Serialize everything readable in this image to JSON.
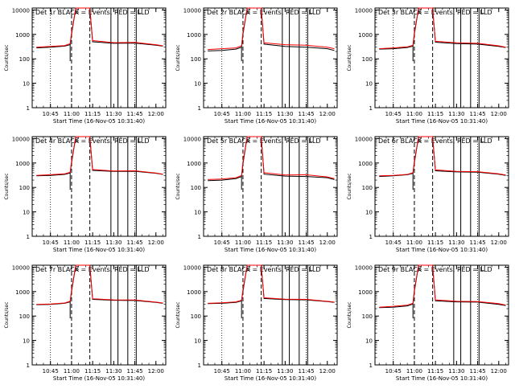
{
  "ylabel": "Counts/sec",
  "xlabel": "Start Time (16-Nov-05 10:31:40)",
  "x_tick_labels": [
    "10:45",
    "11:00",
    "11:15",
    "11:30",
    "11:45",
    "12:00"
  ],
  "y_tick_labels": [
    "1",
    "10",
    "100",
    "1000",
    "10000"
  ],
  "markers": {
    "S": "S",
    "L": "L"
  },
  "colors": {
    "events": "#000000",
    "lld": "#ff0000"
  },
  "chart_data": [
    {
      "type": "line",
      "title": "Det 1r BLACK = Events, RED = LLD",
      "ylim": [
        1,
        12000
      ],
      "xlim": [
        "10:32",
        "12:07"
      ],
      "x": [
        "10:35",
        "10:45",
        "10:55",
        "10:59",
        "11:00",
        "11:03",
        "11:08",
        "11:13",
        "11:15",
        "11:30",
        "11:45",
        "12:00",
        "12:05"
      ],
      "series": [
        {
          "name": "BLACK = Events",
          "values": [
            280,
            300,
            330,
            380,
            1000,
            12000,
            12000,
            12000,
            500,
            430,
            440,
            360,
            330
          ]
        },
        {
          "name": "RED = LLD",
          "values": [
            300,
            320,
            350,
            420,
            1200,
            12000,
            12000,
            12000,
            560,
            460,
            470,
            380,
            340
          ]
        }
      ],
      "grid": false
    },
    {
      "type": "line",
      "title": "Det 2r BLACK = Events, RED = LLD",
      "ylim": [
        1,
        12000
      ],
      "xlim": [
        "10:32",
        "12:07"
      ],
      "x": [
        "10:35",
        "10:45",
        "10:55",
        "10:59",
        "11:00",
        "11:03",
        "11:08",
        "11:13",
        "11:15",
        "11:30",
        "11:45",
        "12:00",
        "12:05"
      ],
      "series": [
        {
          "name": "BLACK = Events",
          "values": [
            210,
            220,
            250,
            300,
            1000,
            12000,
            12000,
            12000,
            400,
            320,
            300,
            260,
            220
          ]
        },
        {
          "name": "RED = LLD",
          "values": [
            240,
            260,
            280,
            340,
            1200,
            12000,
            12000,
            12000,
            450,
            380,
            360,
            300,
            260
          ]
        }
      ],
      "grid": false
    },
    {
      "type": "line",
      "title": "Det 3r BLACK = Events, RED = LLD",
      "ylim": [
        1,
        12000
      ],
      "xlim": [
        "10:32",
        "12:07"
      ],
      "x": [
        "10:35",
        "10:45",
        "10:55",
        "10:59",
        "11:00",
        "11:03",
        "11:08",
        "11:13",
        "11:15",
        "11:30",
        "11:45",
        "12:00",
        "12:05"
      ],
      "series": [
        {
          "name": "BLACK = Events",
          "values": [
            250,
            260,
            290,
            330,
            1000,
            12000,
            12000,
            12000,
            480,
            420,
            400,
            320,
            290
          ]
        },
        {
          "name": "RED = LLD",
          "values": [
            260,
            280,
            310,
            360,
            1200,
            12000,
            12000,
            12000,
            520,
            450,
            430,
            340,
            300
          ]
        }
      ],
      "grid": false
    },
    {
      "type": "line",
      "title": "Det 4r BLACK = Events, RED = LLD",
      "ylim": [
        1,
        12000
      ],
      "xlim": [
        "10:32",
        "12:07"
      ],
      "x": [
        "10:35",
        "10:45",
        "10:55",
        "10:59",
        "11:00",
        "11:03",
        "11:08",
        "11:13",
        "11:15",
        "11:30",
        "11:45",
        "12:00",
        "12:05"
      ],
      "series": [
        {
          "name": "BLACK = Events",
          "values": [
            300,
            310,
            340,
            390,
            1000,
            12000,
            12000,
            12000,
            500,
            450,
            460,
            380,
            340
          ]
        },
        {
          "name": "RED = LLD",
          "values": [
            310,
            330,
            360,
            420,
            1200,
            12000,
            12000,
            12000,
            540,
            470,
            480,
            390,
            350
          ]
        }
      ],
      "grid": false
    },
    {
      "type": "line",
      "title": "Det 5r BLACK = Events, RED = LLD",
      "ylim": [
        1,
        12000
      ],
      "xlim": [
        "10:32",
        "12:07"
      ],
      "x": [
        "10:35",
        "10:45",
        "10:55",
        "10:59",
        "11:00",
        "11:03",
        "11:08",
        "11:13",
        "11:15",
        "11:30",
        "11:45",
        "12:00",
        "12:05"
      ],
      "series": [
        {
          "name": "BLACK = Events",
          "values": [
            190,
            200,
            230,
            280,
            900,
            12000,
            12000,
            12000,
            350,
            290,
            280,
            250,
            210
          ]
        },
        {
          "name": "RED = LLD",
          "values": [
            210,
            220,
            250,
            310,
            1100,
            12000,
            12000,
            12000,
            400,
            320,
            330,
            270,
            230
          ]
        }
      ],
      "grid": false
    },
    {
      "type": "line",
      "title": "Det 6r BLACK = Events, RED = LLD",
      "ylim": [
        1,
        12000
      ],
      "xlim": [
        "10:32",
        "12:07"
      ],
      "x": [
        "10:35",
        "10:45",
        "10:55",
        "10:59",
        "11:00",
        "11:03",
        "11:08",
        "11:13",
        "11:15",
        "11:30",
        "11:45",
        "12:00",
        "12:05"
      ],
      "series": [
        {
          "name": "BLACK = Events",
          "values": [
            280,
            300,
            330,
            380,
            1000,
            12000,
            12000,
            12000,
            480,
            430,
            420,
            350,
            310
          ]
        },
        {
          "name": "RED = LLD",
          "values": [
            300,
            310,
            340,
            400,
            1200,
            12000,
            12000,
            12000,
            520,
            450,
            440,
            360,
            320
          ]
        }
      ],
      "grid": false
    },
    {
      "type": "line",
      "title": "Det 7r BLACK = Events, RED = LLD",
      "ylim": [
        1,
        12000
      ],
      "xlim": [
        "10:32",
        "12:07"
      ],
      "x": [
        "10:35",
        "10:45",
        "10:55",
        "10:59",
        "11:00",
        "11:03",
        "11:08",
        "11:13",
        "11:15",
        "11:30",
        "11:45",
        "12:00",
        "12:05"
      ],
      "series": [
        {
          "name": "BLACK = Events",
          "values": [
            290,
            300,
            330,
            380,
            1000,
            12000,
            12000,
            12000,
            480,
            440,
            430,
            360,
            330
          ]
        },
        {
          "name": "RED = LLD",
          "values": [
            300,
            310,
            340,
            400,
            1200,
            12000,
            12000,
            12000,
            510,
            460,
            450,
            370,
            340
          ]
        }
      ],
      "grid": false
    },
    {
      "type": "line",
      "title": "Det 8r BLACK = Events, RED = LLD",
      "ylim": [
        1,
        12000
      ],
      "xlim": [
        "10:32",
        "12:07"
      ],
      "x": [
        "10:35",
        "10:45",
        "10:55",
        "10:59",
        "11:00",
        "11:03",
        "11:08",
        "11:13",
        "11:15",
        "11:30",
        "11:45",
        "12:00",
        "12:05"
      ],
      "series": [
        {
          "name": "BLACK = Events",
          "values": [
            320,
            330,
            360,
            420,
            1000,
            12000,
            12000,
            12000,
            520,
            470,
            460,
            390,
            360
          ]
        },
        {
          "name": "RED = LLD",
          "values": [
            330,
            350,
            380,
            440,
            1200,
            12000,
            12000,
            12000,
            560,
            490,
            480,
            400,
            370
          ]
        }
      ],
      "grid": false
    },
    {
      "type": "line",
      "title": "Det 9r BLACK = Events, RED = LLD",
      "ylim": [
        1,
        12000
      ],
      "xlim": [
        "10:32",
        "12:07"
      ],
      "x": [
        "10:35",
        "10:45",
        "10:55",
        "10:59",
        "11:00",
        "11:03",
        "11:08",
        "11:13",
        "11:15",
        "11:30",
        "11:45",
        "12:00",
        "12:05"
      ],
      "series": [
        {
          "name": "BLACK = Events",
          "values": [
            220,
            230,
            260,
            310,
            1000,
            12000,
            12000,
            12000,
            420,
            380,
            370,
            300,
            270
          ]
        },
        {
          "name": "RED = LLD",
          "values": [
            230,
            250,
            280,
            330,
            1200,
            12000,
            12000,
            12000,
            460,
            400,
            390,
            320,
            280
          ]
        }
      ],
      "grid": false
    }
  ],
  "vertical_lines": {
    "dotted": [
      "10:45",
      "11:45"
    ],
    "dashed": [
      "11:00",
      "11:13"
    ],
    "solid": [
      "11:28",
      "11:33",
      "11:40",
      "11:46"
    ]
  }
}
